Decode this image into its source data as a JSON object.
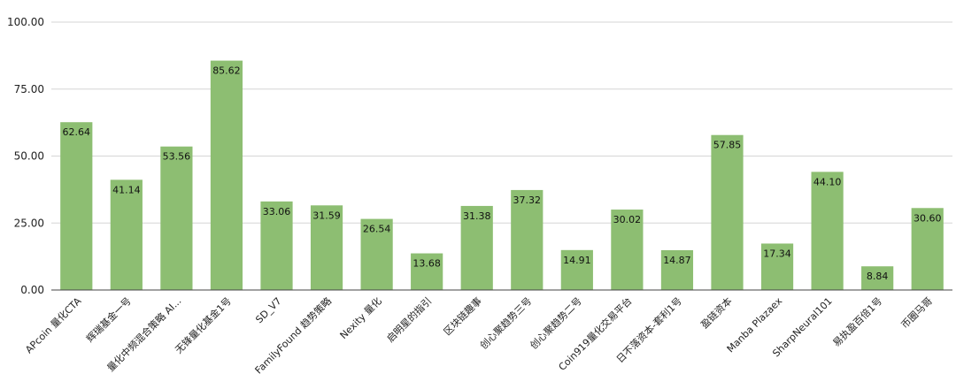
{
  "chart_data": {
    "type": "bar",
    "title": "",
    "xlabel": "",
    "ylabel": "",
    "ylim": [
      0,
      100
    ],
    "yticks": [
      "0.00",
      "25.00",
      "50.00",
      "75.00",
      "100.00"
    ],
    "grid": true,
    "legend": "none",
    "bar_color": "#8dbe72",
    "categories": [
      "APcoin 量化CTA",
      "辉瑞基金一号",
      "量化中频混合策略 AI...",
      "无锋量化基金1号",
      "SD_V7",
      "FamilyFound 趋势策略",
      "Nexity 量化",
      "启明星的指引",
      "区块链趣事",
      "创心聚趋势三号",
      "创心聚趋势二号",
      "Coin919量化交易平台",
      "日不落资本-套利1号",
      "盈链资本",
      "Manba Plazaex",
      "SharpNeural101",
      "易执盈百倍1号",
      "币圈马哥"
    ],
    "values": [
      62.64,
      41.14,
      53.56,
      85.62,
      33.06,
      31.59,
      26.54,
      13.68,
      31.38,
      37.32,
      14.91,
      30.02,
      14.87,
      57.85,
      17.34,
      44.1,
      8.84,
      30.6
    ],
    "value_labels": [
      "62.64",
      "41.14",
      "53.56",
      "85.62",
      "33.06",
      "31.59",
      "26.54",
      "13.68",
      "31.38",
      "37.32",
      "14.91",
      "30.02",
      "14.87",
      "57.85",
      "17.34",
      "44.10",
      "8.84",
      "30.60"
    ]
  }
}
